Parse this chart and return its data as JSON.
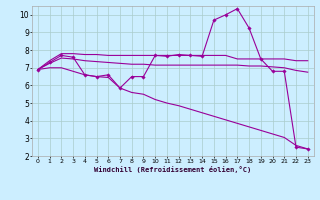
{
  "background_color": "#cceeff",
  "grid_color": "#aacccc",
  "line_color": "#990099",
  "xlim": [
    -0.5,
    23.5
  ],
  "ylim": [
    2,
    10.5
  ],
  "xlabel": "Windchill (Refroidissement éolien,°C)",
  "xticks": [
    0,
    1,
    2,
    3,
    4,
    5,
    6,
    7,
    8,
    9,
    10,
    11,
    12,
    13,
    14,
    15,
    16,
    17,
    18,
    19,
    20,
    21,
    22,
    23
  ],
  "yticks": [
    2,
    3,
    4,
    5,
    6,
    7,
    8,
    9,
    10
  ],
  "series1_flat_high": {
    "x": [
      0,
      1,
      2,
      3,
      4,
      5,
      6,
      7,
      8,
      9,
      10,
      11,
      12,
      13,
      14,
      15,
      16,
      17,
      18,
      19,
      20,
      21,
      22,
      23
    ],
    "y": [
      6.9,
      7.4,
      7.8,
      7.8,
      7.75,
      7.75,
      7.7,
      7.7,
      7.7,
      7.7,
      7.7,
      7.7,
      7.7,
      7.7,
      7.7,
      7.7,
      7.7,
      7.5,
      7.5,
      7.5,
      7.5,
      7.5,
      7.4,
      7.4
    ]
  },
  "series2_flat_mid": {
    "x": [
      0,
      1,
      2,
      3,
      4,
      5,
      6,
      7,
      8,
      9,
      10,
      11,
      12,
      13,
      14,
      15,
      16,
      17,
      18,
      19,
      20,
      21,
      22,
      23
    ],
    "y": [
      6.9,
      7.25,
      7.55,
      7.5,
      7.4,
      7.35,
      7.3,
      7.25,
      7.2,
      7.2,
      7.15,
      7.15,
      7.15,
      7.15,
      7.15,
      7.15,
      7.15,
      7.15,
      7.1,
      7.1,
      7.05,
      7.0,
      6.85,
      6.75
    ]
  },
  "series3_declining": {
    "x": [
      0,
      1,
      2,
      3,
      4,
      5,
      6,
      7,
      8,
      9,
      10,
      11,
      12,
      13,
      14,
      15,
      16,
      17,
      18,
      19,
      20,
      21,
      22,
      23
    ],
    "y": [
      6.9,
      7.0,
      7.0,
      6.8,
      6.6,
      6.5,
      6.45,
      5.85,
      5.6,
      5.5,
      5.2,
      5.0,
      4.85,
      4.65,
      4.45,
      4.25,
      4.05,
      3.85,
      3.65,
      3.45,
      3.25,
      3.05,
      2.6,
      2.4
    ]
  },
  "series4_peaked": {
    "x": [
      0,
      1,
      2,
      3,
      4,
      5,
      6,
      7,
      8,
      9,
      10,
      11,
      12,
      13,
      14,
      15,
      16,
      17,
      18,
      19,
      20,
      21,
      22,
      23
    ],
    "y": [
      6.9,
      7.3,
      7.7,
      7.6,
      6.6,
      6.5,
      6.6,
      5.85,
      6.5,
      6.5,
      7.7,
      7.65,
      7.75,
      7.7,
      7.65,
      9.7,
      10.0,
      10.35,
      9.25,
      7.5,
      6.8,
      6.8,
      2.5,
      2.4
    ]
  }
}
